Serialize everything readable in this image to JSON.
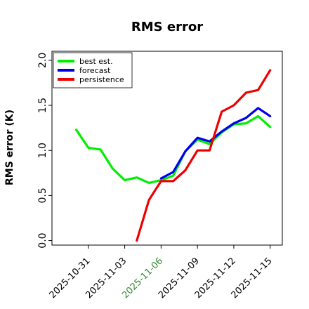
{
  "chart_data": {
    "type": "line",
    "title": "RMS error",
    "ylabel": "RMS error (K)",
    "xlabel": "",
    "ylim": [
      -0.05,
      2.1
    ],
    "yticks": [
      "0.0",
      "0.5",
      "1.0",
      "1.5",
      "2.0"
    ],
    "ytick_values": [
      0.0,
      0.5,
      1.0,
      1.5,
      2.0
    ],
    "x_dates": [
      "2025-10-30",
      "2025-10-31",
      "2025-11-01",
      "2025-11-02",
      "2025-11-03",
      "2025-11-04",
      "2025-11-05",
      "2025-11-06",
      "2025-11-07",
      "2025-11-08",
      "2025-11-09",
      "2025-11-10",
      "2025-11-11",
      "2025-11-12",
      "2025-11-13",
      "2025-11-14",
      "2025-11-15"
    ],
    "xlim": [
      "2025-10-28",
      "2025-11-16"
    ],
    "xticks": [
      {
        "label": "2025-10-31",
        "date": "2025-10-31",
        "color": "#000000"
      },
      {
        "label": "2025-11-03",
        "date": "2025-11-03",
        "color": "#000000"
      },
      {
        "label": "2025-11-06",
        "date": "2025-11-06",
        "color": "#2e8b2e"
      },
      {
        "label": "2025-11-09",
        "date": "2025-11-09",
        "color": "#000000"
      },
      {
        "label": "2025-11-12",
        "date": "2025-11-12",
        "color": "#000000"
      },
      {
        "label": "2025-11-15",
        "date": "2025-11-15",
        "color": "#000000"
      }
    ],
    "legend_position": "top-left",
    "series": [
      {
        "name": "best est.",
        "color": "#00ee00",
        "values": [
          1.23,
          1.03,
          1.01,
          0.8,
          0.67,
          0.7,
          0.64,
          0.67,
          0.72,
          0.99,
          1.12,
          1.07,
          1.2,
          1.29,
          1.3,
          1.38,
          1.26
        ]
      },
      {
        "name": "forecast",
        "color": "#0000ee",
        "values": [
          null,
          null,
          null,
          null,
          null,
          null,
          null,
          0.69,
          0.76,
          0.99,
          1.14,
          1.1,
          1.21,
          1.3,
          1.36,
          1.47,
          1.38
        ]
      },
      {
        "name": "persistence",
        "color": "#ee0000",
        "values": [
          null,
          null,
          null,
          null,
          null,
          0.0,
          0.45,
          0.66,
          0.66,
          0.78,
          1.0,
          1.0,
          1.43,
          1.5,
          1.64,
          1.67,
          1.89
        ]
      }
    ]
  }
}
